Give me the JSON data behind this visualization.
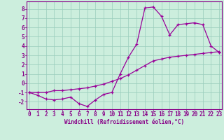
{
  "xlabel": "Windchill (Refroidissement éolien,°C)",
  "bg_color": "#cceedd",
  "line_color": "#990099",
  "grid_color": "#99ccbb",
  "axis_color": "#880088",
  "tick_color": "#880088",
  "hours": [
    0,
    1,
    2,
    3,
    4,
    5,
    6,
    7,
    8,
    9,
    10,
    11,
    12,
    13,
    14,
    15,
    16,
    17,
    18,
    19,
    20,
    21,
    22,
    23
  ],
  "curve1": [
    -1.0,
    -1.3,
    -1.7,
    -1.8,
    -1.7,
    -1.5,
    -2.2,
    -2.5,
    -1.8,
    -1.2,
    -1.0,
    1.0,
    2.8,
    4.2,
    8.1,
    8.2,
    7.2,
    5.2,
    6.3,
    6.4,
    6.5,
    6.3,
    4.0,
    3.3
  ],
  "curve2": [
    -1.0,
    -1.0,
    -1.0,
    -0.8,
    -0.8,
    -0.7,
    -0.6,
    -0.5,
    -0.3,
    -0.1,
    0.2,
    0.5,
    0.9,
    1.4,
    1.9,
    2.4,
    2.6,
    2.8,
    2.9,
    3.0,
    3.1,
    3.2,
    3.3,
    3.4
  ],
  "ylim": [
    -2.8,
    8.8
  ],
  "xlim": [
    -0.3,
    23.3
  ],
  "yticks": [
    -2,
    -1,
    0,
    1,
    2,
    3,
    4,
    5,
    6,
    7,
    8
  ],
  "xticks": [
    0,
    1,
    2,
    3,
    4,
    5,
    6,
    7,
    8,
    9,
    10,
    11,
    12,
    13,
    14,
    15,
    16,
    17,
    18,
    19,
    20,
    21,
    22,
    23
  ],
  "xlabel_fontsize": 5.5,
  "tick_fontsize": 5.5,
  "line_width": 0.9,
  "marker_size": 3.0
}
